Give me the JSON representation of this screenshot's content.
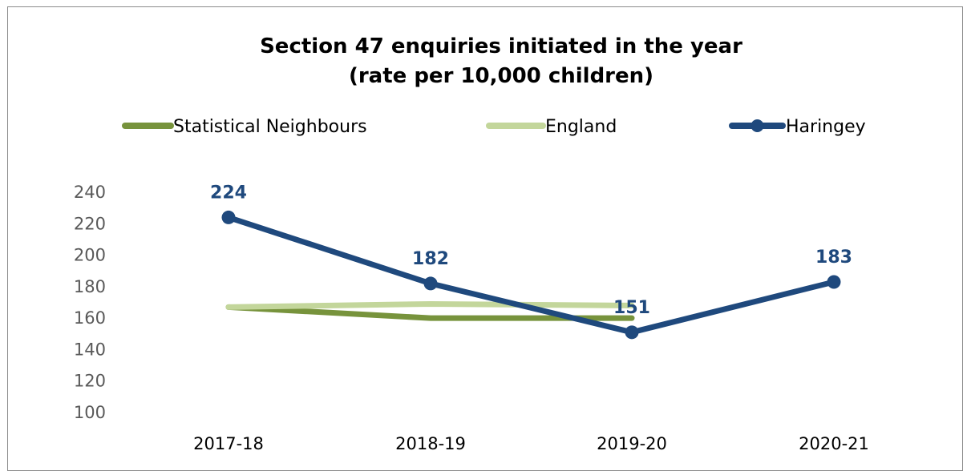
{
  "chart_data": {
    "type": "line",
    "title": "Section 47 enquiries initiated in the year",
    "subtitle": "(rate per 10,000 children)",
    "categories": [
      "2017-18",
      "2018-19",
      "2019-20",
      "2020-21"
    ],
    "ylim": [
      100,
      240
    ],
    "yticks": [
      100,
      120,
      140,
      160,
      180,
      200,
      220,
      240
    ],
    "grid": false,
    "legend_position": "top",
    "series": [
      {
        "name": "Statistical Neighbours",
        "values": [
          167,
          160,
          160,
          null
        ],
        "color": "#77933c",
        "markers": false,
        "labels": false
      },
      {
        "name": "England",
        "values": [
          167,
          169,
          168,
          null
        ],
        "color": "#c3d69b",
        "markers": false,
        "labels": false
      },
      {
        "name": "Haringey",
        "values": [
          224,
          182,
          151,
          183
        ],
        "color": "#1f497d",
        "markers": true,
        "labels": true
      }
    ]
  }
}
